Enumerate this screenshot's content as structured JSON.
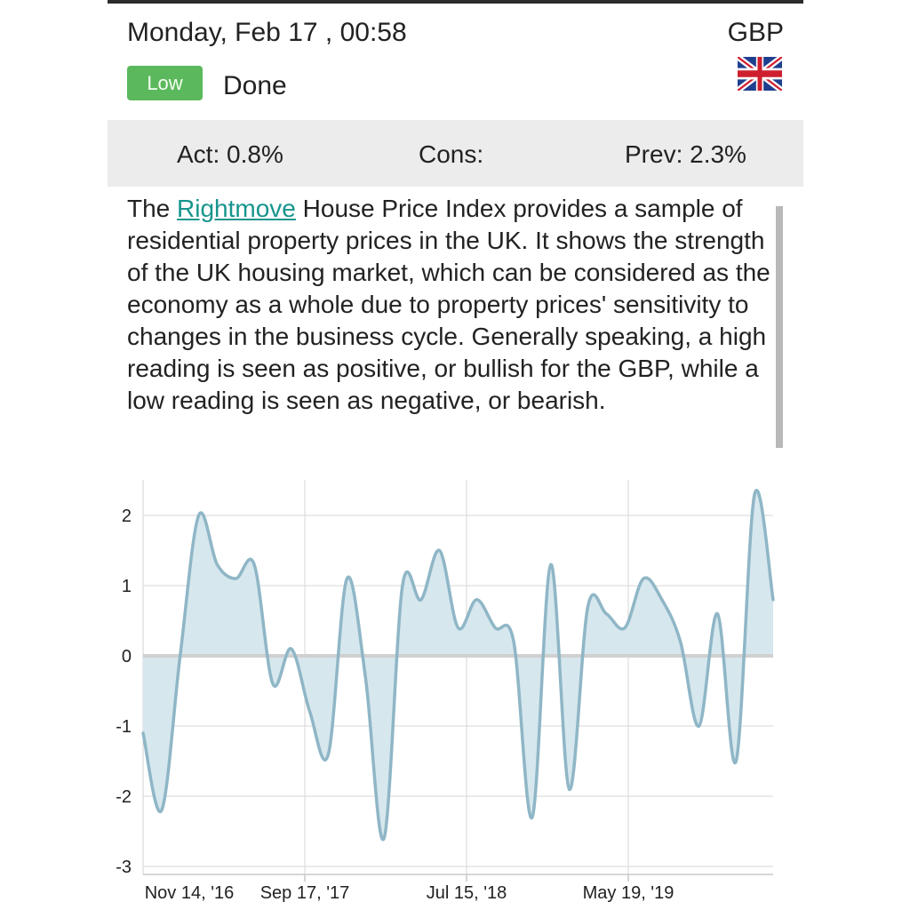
{
  "header": {
    "datetime": "Monday, Feb 17 , 00:58",
    "currency": "GBP",
    "impact_badge": "Low",
    "status": "Done",
    "flag_icon": "uk-flag-icon"
  },
  "stats": {
    "actual": "Act: 0.8%",
    "consensus": "Cons:",
    "previous": "Prev: 2.3%"
  },
  "description": {
    "prefix": "The ",
    "link_text": "Rightmove",
    "body": " House Price Index provides a sample of residential property prices in the UK. It shows the strength of the UK housing market, which can be considered as the economy as a whole due to property prices' sensitivity to changes in the business cycle. Generally speaking, a high reading is seen as positive, or bullish for the GBP, while a low reading is seen as negative, or bearish."
  },
  "colors": {
    "badge_low": "#5cb85c",
    "link": "#17958d",
    "series_line": "#8fb6c6",
    "series_fill": "#d6e7ee"
  },
  "chart_data": {
    "type": "area",
    "xlabel": "",
    "ylabel": "",
    "ylim": [
      -3,
      2.5
    ],
    "yticks": [
      "-3",
      "-2",
      "-1",
      "0",
      "1",
      "2"
    ],
    "xticks": [
      "Nov 14, '16",
      "Sep 17, '17",
      "Jul 15, '18",
      "May 19, '19"
    ],
    "grid": true,
    "series": [
      {
        "values": [
          -1.1,
          -2.2,
          0.0,
          2.0,
          1.3,
          1.1,
          1.3,
          -0.4,
          0.1,
          -0.8,
          -1.4,
          1.1,
          -0.3,
          -2.6,
          1.0,
          0.8,
          1.5,
          0.4,
          0.8,
          0.4,
          0.2,
          -2.3,
          1.3,
          -1.9,
          0.7,
          0.6,
          0.4,
          1.1,
          0.8,
          0.2,
          -1.0,
          0.6,
          -1.5,
          2.3,
          0.8
        ]
      }
    ]
  }
}
